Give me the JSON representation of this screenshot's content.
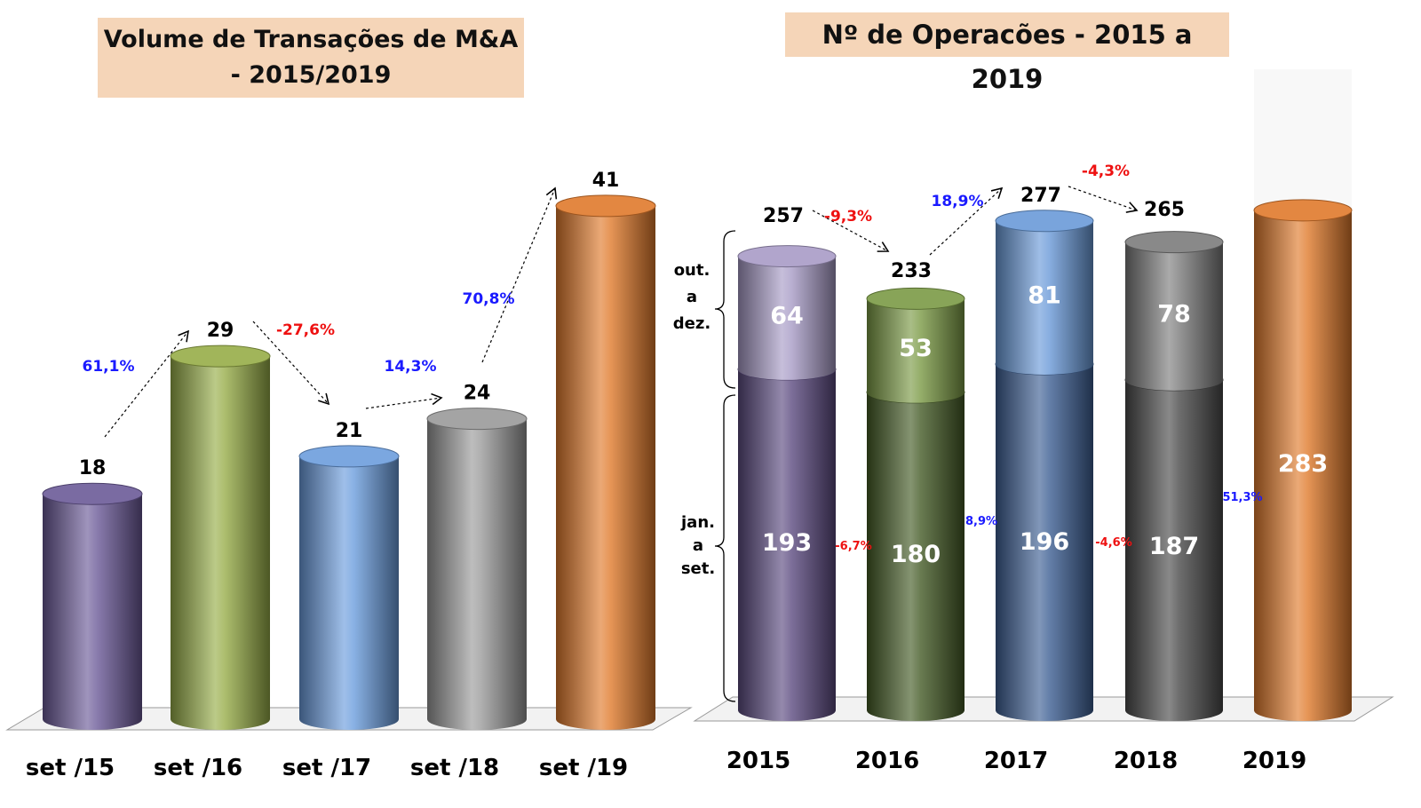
{
  "chart_data": [
    {
      "type": "bar",
      "title": "Volume de Transações de M&A - 2015/2019",
      "categories": [
        "set /15",
        "set /16",
        "set /17",
        "set /18",
        "set /19"
      ],
      "values": [
        18,
        29,
        21,
        24,
        41
      ],
      "changes": [
        "61,1%",
        "-27,6%",
        "14,3%",
        "70,8%"
      ],
      "colors": [
        "#6b5a98",
        "#97ad48",
        "#6c9ddd",
        "#9a9a9a",
        "#e07a2c"
      ],
      "style": "3d-cylinder"
    },
    {
      "type": "bar",
      "stacked": true,
      "title": "Nº de Operacões  - 2015 a 2019",
      "categories": [
        "2015",
        "2016",
        "2017",
        "2018",
        "2019"
      ],
      "series": [
        {
          "name": "jan. a set.",
          "values": [
            193,
            180,
            196,
            187,
            283
          ],
          "colors": [
            "#5b4a80",
            "#445a25",
            "#3d5f93",
            "#4a4a4a",
            "#e07a2c"
          ]
        },
        {
          "name": "out. a dez.",
          "values": [
            64,
            53,
            81,
            78,
            null
          ],
          "colors": [
            "#a89bc6",
            "#7b9a45",
            "#6a9ad8",
            "#7c7c7c",
            null
          ]
        }
      ],
      "totals": [
        257,
        233,
        277,
        265
      ],
      "total_changes": [
        "-9,3%",
        "18,9%",
        "-4,3%"
      ],
      "ytd_changes": [
        "-6,7%",
        "8,9%",
        "-4,6%",
        "51,3%"
      ],
      "series_label_words": {
        "upper": [
          "out.",
          "a",
          "dez."
        ],
        "lower": [
          "jan.",
          "a",
          "set."
        ]
      },
      "change_colors": {
        "positive": "#1a1aff",
        "negative": "#ee1111"
      },
      "style": "3d-cylinder"
    }
  ]
}
